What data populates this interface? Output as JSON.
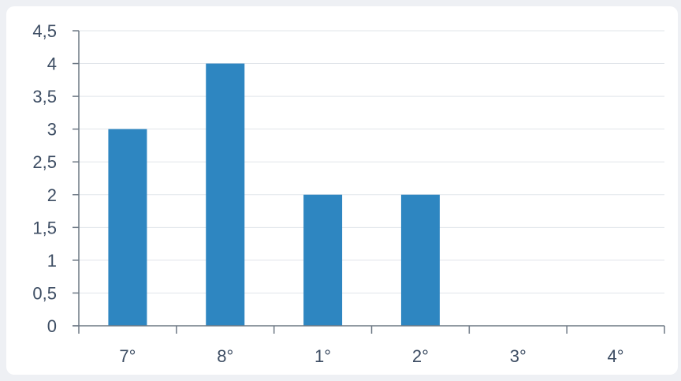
{
  "chart_data": {
    "type": "bar",
    "categories": [
      "7°",
      "8°",
      "1°",
      "2°",
      "3°",
      "4°"
    ],
    "values": [
      3,
      4,
      2,
      2,
      0,
      0
    ],
    "ylim": [
      0,
      4.5
    ],
    "y_ticks": [
      "0",
      "0,5",
      "1",
      "1,5",
      "2",
      "2,5",
      "3",
      "3,5",
      "4",
      "4,5"
    ],
    "title": "",
    "xlabel": "",
    "ylabel": "",
    "grid": true,
    "colors": {
      "bar": "#2e86c1",
      "grid": "#e1e5ea",
      "axis": "#6d7884",
      "background": "#eef0f4",
      "plot_background": "#ffffff"
    }
  }
}
